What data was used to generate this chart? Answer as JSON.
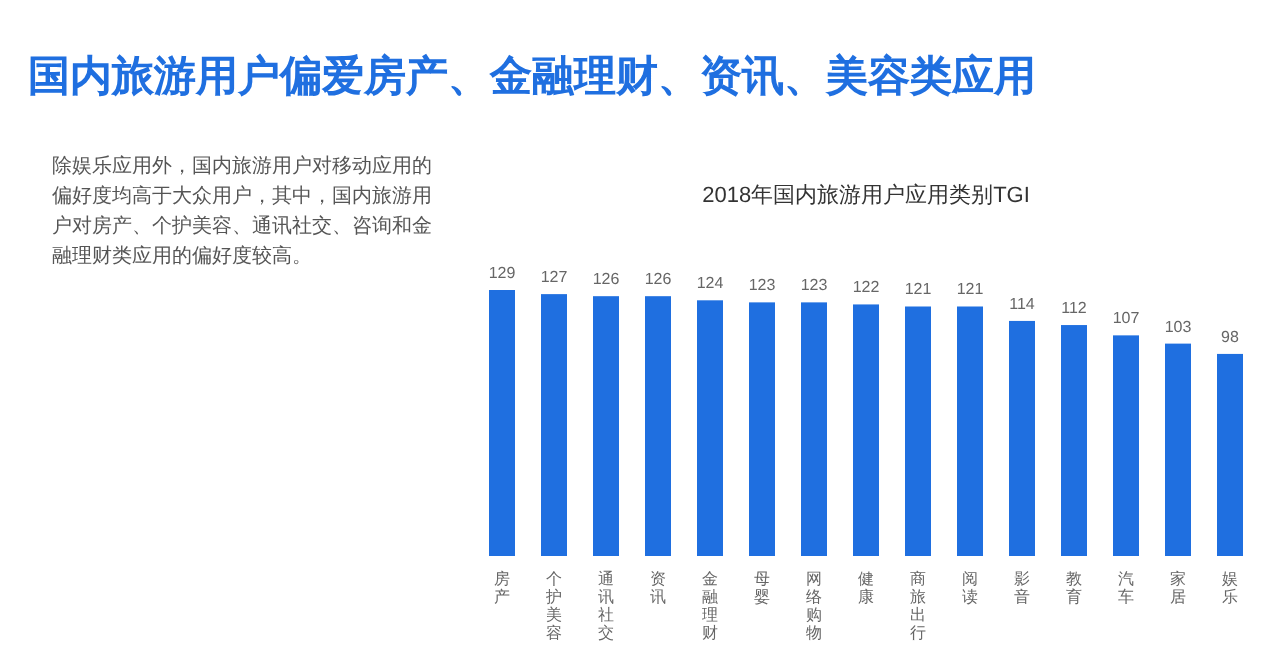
{
  "chart_data": {
    "type": "bar",
    "title": "国内旅游用户偏爱房产、金融理财、资讯、美容类应用",
    "subtitle": "2018年国内旅游用户应用类别TGI",
    "annotations": [
      "除娱乐应用外，国内旅游用户对移动应用的偏好度均高于大众用户，其中，国内旅游用户对房产、个护美容、通讯社交、咨询和金融理财类应用的偏好度较高。"
    ],
    "categories": [
      "房产",
      "个护美容",
      "通讯社交",
      "资讯",
      "金融理财",
      "母婴",
      "网络购物",
      "健康",
      "商旅出行",
      "阅读",
      "影音",
      "教育",
      "汽车",
      "家居",
      "娱乐"
    ],
    "values": [
      129,
      127,
      126,
      126,
      124,
      123,
      123,
      122,
      121,
      121,
      114,
      112,
      107,
      103,
      98
    ],
    "color": "#1f6fe0",
    "data_labels": true,
    "tick_labels": "x"
  }
}
